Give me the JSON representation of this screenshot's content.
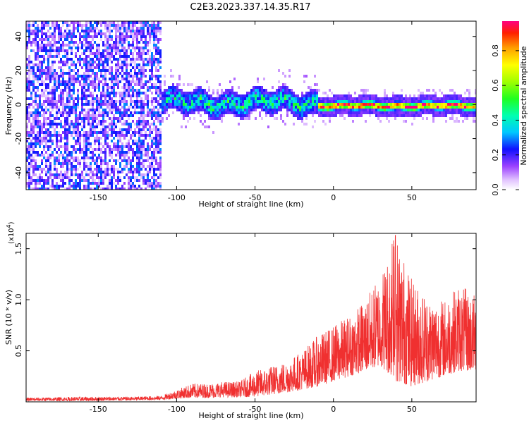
{
  "title": "C2E3.2023.337.14.35.R17",
  "chart_data": [
    {
      "type": "heatmap",
      "xlabel": "Height of straight line (km)",
      "ylabel": "Frequency (Hz)",
      "xlim": [
        -196,
        91
      ],
      "ylim": [
        -50,
        49
      ],
      "xticks": [
        -150,
        -100,
        -50,
        0,
        50
      ],
      "yticks": [
        -40,
        -20,
        0,
        20,
        40
      ],
      "colorbar": {
        "label": "Normalized spectral amplitude",
        "ticks": [
          0.0,
          0.2,
          0.4,
          0.6,
          0.8
        ],
        "tick_labels": [
          "0.0",
          "0.2",
          "0.4",
          "0.6",
          "0.8"
        ],
        "range": [
          0,
          0.97
        ]
      },
      "bands": [
        {
          "x": [
            -196,
            -110
          ],
          "freq_center": 0,
          "freq_half_width": 50,
          "peak_amplitude": 0.25,
          "pattern": "broadband noise"
        },
        {
          "x": [
            -110,
            -10
          ],
          "freq_center": 2,
          "freq_half_width": 7,
          "peak_amplitude": 0.45,
          "pattern": "signal band with outer halo ±18 Hz"
        },
        {
          "x": [
            -10,
            91
          ],
          "freq_center": 0,
          "freq_half_width": 2.5,
          "peak_amplitude": 0.95,
          "pattern": "narrow strong line"
        }
      ]
    },
    {
      "type": "line",
      "xlabel": "Height of straight line (km)",
      "ylabel": "SNR (10 * v/v)",
      "y_multiplier_label": "(x10",
      "y_multiplier_exp": "4",
      "xlim": [
        -196,
        91
      ],
      "ylim": [
        0,
        16500
      ],
      "xticks": [
        -150,
        -100,
        -50,
        0,
        50
      ],
      "yticks": [
        5000,
        10000,
        15000
      ],
      "ytick_labels": [
        "0.5",
        "1.0",
        "1.5"
      ],
      "series": [
        {
          "color": "#f03030",
          "envelope": {
            "x": [
              -196,
              -160,
              -130,
              -110,
              -100,
              -90,
              -80,
              -70,
              -60,
              -50,
              -40,
              -30,
              -20,
              -10,
              0,
              10,
              20,
              30,
              40,
              50,
              60,
              70,
              80,
              91
            ],
            "min": [
              100,
              100,
              150,
              200,
              300,
              400,
              400,
              450,
              450,
              500,
              700,
              900,
              1200,
              1500,
              2000,
              2500,
              3000,
              3500,
              2000,
              1500,
              2000,
              2500,
              3000,
              3000
            ],
            "max": [
              400,
              500,
              500,
              600,
              1200,
              1800,
              1800,
              2000,
              2000,
              3000,
              3500,
              4000,
              5000,
              6500,
              7500,
              8500,
              10000,
              12500,
              16500,
              12000,
              10500,
              10000,
              11500,
              10500
            ]
          }
        }
      ]
    }
  ]
}
